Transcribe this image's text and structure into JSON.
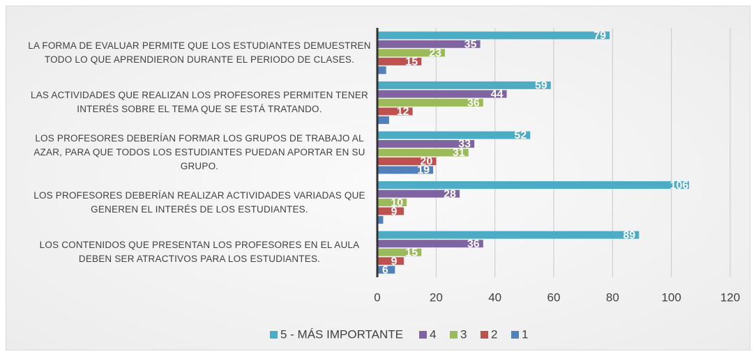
{
  "chart_data": {
    "type": "barh",
    "categories": [
      "LA FORMA DE EVALUAR PERMITE QUE LOS ESTUDIANTES DEMUESTREN TODO LO QUE APRENDIERON DURANTE EL PERIODO DE CLASES.",
      "LAS ACTIVIDADES QUE REALIZAN LOS PROFESORES PERMITEN TENER INTERÉS SOBRE EL TEMA QUE SE ESTÁ TRATANDO.",
      "LOS PROFESORES DEBERÍAN FORMAR LOS GRUPOS DE TRABAJO AL AZAR, PARA QUE TODOS LOS ESTUDIANTES PUEDAN APORTAR EN SU GRUPO.",
      "LOS PROFESORES DEBERÍAN REALIZAR ACTIVIDADES VARIADAS QUE GENEREN EL INTERÉS DE LOS ESTUDIANTES.",
      "LOS CONTENIDOS QUE PRESENTAN LOS PROFESORES EN EL AULA DEBEN SER ATRACTIVOS PARA LOS ESTUDIANTES."
    ],
    "series": [
      {
        "name": "5 - MÁS IMPORTANTE",
        "color": "#4bacc6",
        "values": [
          79,
          59,
          52,
          106,
          89
        ]
      },
      {
        "name": "4",
        "color": "#8064a2",
        "values": [
          35,
          44,
          33,
          28,
          36
        ]
      },
      {
        "name": "3",
        "color": "#9bbb59",
        "values": [
          23,
          36,
          31,
          10,
          15
        ]
      },
      {
        "name": "2",
        "color": "#c0504d",
        "values": [
          15,
          12,
          20,
          9,
          9
        ]
      },
      {
        "name": "1",
        "color": "#4f81bd",
        "values": [
          3,
          4,
          19,
          2,
          6
        ]
      }
    ],
    "xlim": [
      0,
      120
    ],
    "xticks": [
      0,
      20,
      40,
      60,
      80,
      100,
      120
    ],
    "grid": true,
    "legend": "bottom"
  }
}
